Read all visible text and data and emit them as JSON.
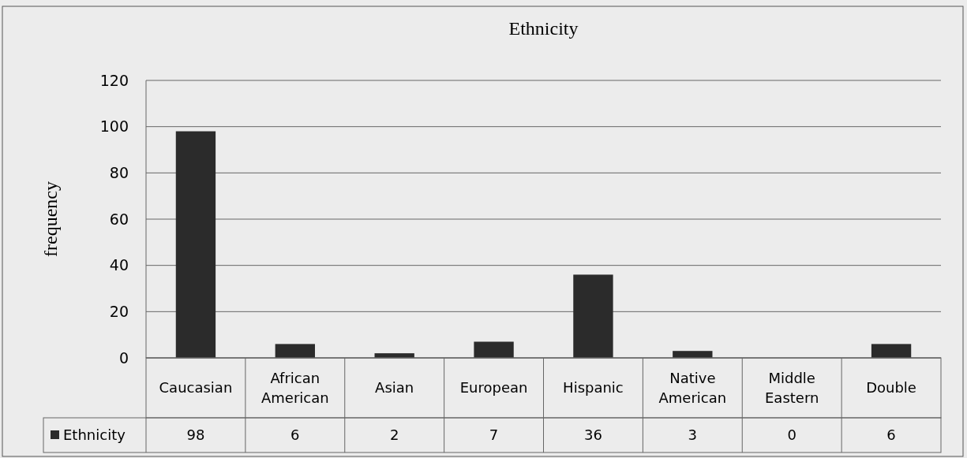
{
  "chart_data": {
    "type": "bar",
    "title": "Ethnicity",
    "ylabel": "frequency",
    "categories": [
      "Caucasian",
      "African American",
      "Asian",
      "European",
      "Hispanic",
      "Native American",
      "Middle Eastern",
      "Double"
    ],
    "series": [
      {
        "name": "Ethnicity",
        "color": "#2b2b2b",
        "values": [
          98,
          6,
          2,
          7,
          36,
          3,
          0,
          6
        ]
      }
    ],
    "ylim": [
      0,
      120
    ],
    "yticks": [
      0,
      20,
      40,
      60,
      80,
      100,
      120
    ],
    "grid": "y",
    "legend": "bottom",
    "data_labels": true
  }
}
